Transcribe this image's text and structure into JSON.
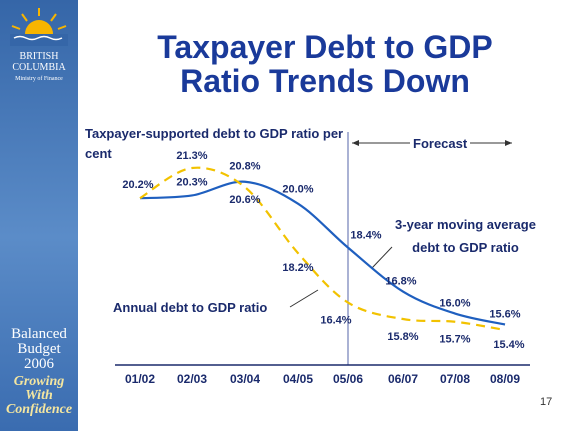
{
  "sidebar": {
    "province_line1": "BRITISH",
    "province_line2": "COLUMBIA",
    "ministry": "Ministry of Finance",
    "budget_line1": "Balanced",
    "budget_line2": "Budget",
    "budget_year": "2006",
    "slogan_line1": "Growing",
    "slogan_line2": "With",
    "slogan_line3": "Confidence"
  },
  "page_number": "17",
  "chart_data": {
    "type": "line",
    "title": "Taxpayer Debt to GDP Ratio Trends Down",
    "y_label": "Taxpayer-supported debt to GDP ratio per cent",
    "forecast_label": "Forecast",
    "categories": [
      "01/02",
      "02/03",
      "03/04",
      "04/05",
      "05/06",
      "06/07",
      "07/08",
      "08/09"
    ],
    "series": [
      {
        "name": "3-year moving average debt to GDP ratio",
        "color": "#1f5fbf",
        "dashed": false,
        "values": [
          20.2,
          20.3,
          20.8,
          20.0,
          18.4,
          16.8,
          16.0,
          15.6
        ],
        "value_labels": [
          null,
          "20.3%",
          "20.8%",
          "20.0%",
          "18.4%",
          "16.8%",
          "16.0%",
          "15.6%"
        ]
      },
      {
        "name": "Annual debt to GDP ratio",
        "color": "#f2c200",
        "dashed": true,
        "values": [
          20.2,
          21.3,
          20.6,
          18.2,
          16.4,
          15.8,
          15.7,
          15.4
        ],
        "value_labels": [
          "20.2%",
          "21.3%",
          "20.6%",
          "18.2%",
          "16.4%",
          "15.8%",
          "15.7%",
          "15.4%"
        ]
      }
    ]
  }
}
